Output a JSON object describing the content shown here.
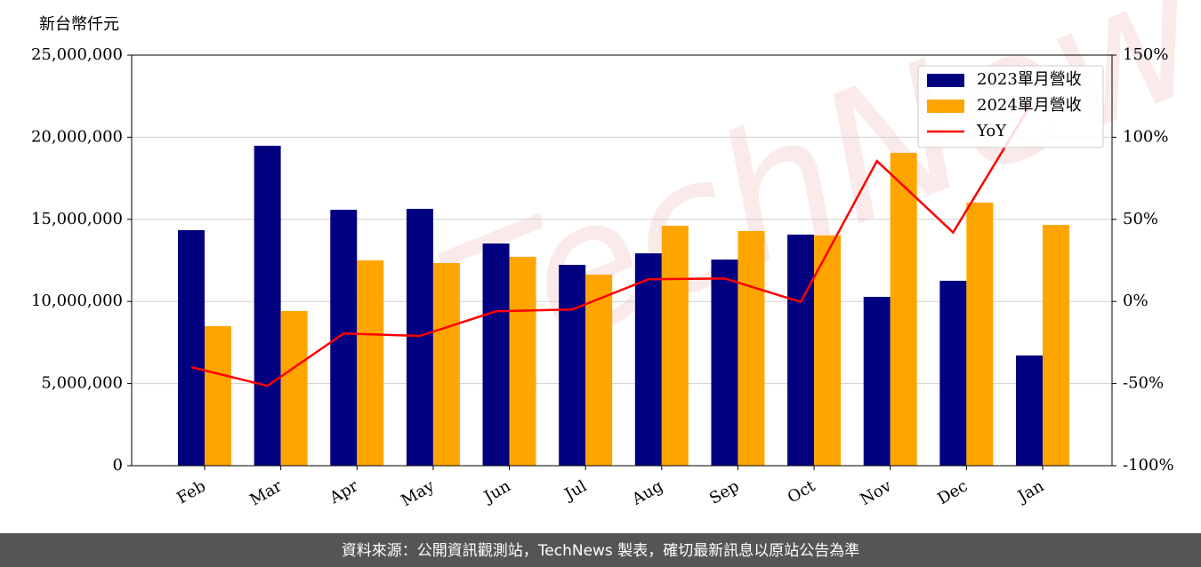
{
  "chart_data": {
    "type": "bar",
    "y_label": "新台幣仟元",
    "watermark": "TechNews",
    "footer": "資料來源：公開資訊觀測站，TechNews 製表，確切最新訊息以原站公告為準",
    "categories": [
      "Feb",
      "Mar",
      "Apr",
      "May",
      "Jun",
      "Jul",
      "Aug",
      "Sep",
      "Oct",
      "Nov",
      "Dec",
      "Jan"
    ],
    "series": [
      {
        "name": "2023單月營收",
        "color": "#000080",
        "type": "bar",
        "values": [
          14340000,
          19480000,
          15580000,
          15640000,
          13530000,
          12230000,
          12930000,
          12550000,
          14070000,
          10280000,
          11260000,
          6710000
        ]
      },
      {
        "name": "2024單月營收",
        "color": "#ffa500",
        "type": "bar",
        "values": [
          8500000,
          9420000,
          12500000,
          12340000,
          12720000,
          11630000,
          14610000,
          14290000,
          14020000,
          19050000,
          16020000,
          14660000
        ]
      },
      {
        "name": "YoY",
        "color": "#ff0000",
        "type": "line",
        "axis": "y2",
        "values": [
          -40,
          -51.4,
          -19.5,
          -21,
          -6,
          -4.9,
          13.5,
          14,
          -0.3,
          85.5,
          42,
          118.5
        ]
      }
    ],
    "ylim": [
      0,
      25000000
    ],
    "yticks": [
      0,
      {
        "value": 5000000,
        "label": "5,000,000"
      },
      {
        "value": 10000000,
        "label": "10,000,000"
      },
      {
        "value": 15000000,
        "label": "15,000,000"
      },
      {
        "value": 20000000,
        "label": "20,000,000"
      },
      {
        "value": 25000000,
        "label": "25,000,000"
      }
    ],
    "y2lim": [
      -100,
      150
    ],
    "y2ticks": [
      {
        "value": -100,
        "label": "-100%"
      },
      {
        "value": -50,
        "label": "-50%"
      },
      {
        "value": 0,
        "label": "0%"
      },
      {
        "value": 50,
        "label": "50%"
      },
      {
        "value": 100,
        "label": "100%"
      },
      {
        "value": 150,
        "label": "150%"
      }
    ],
    "grid": true,
    "legend": "upper right"
  }
}
